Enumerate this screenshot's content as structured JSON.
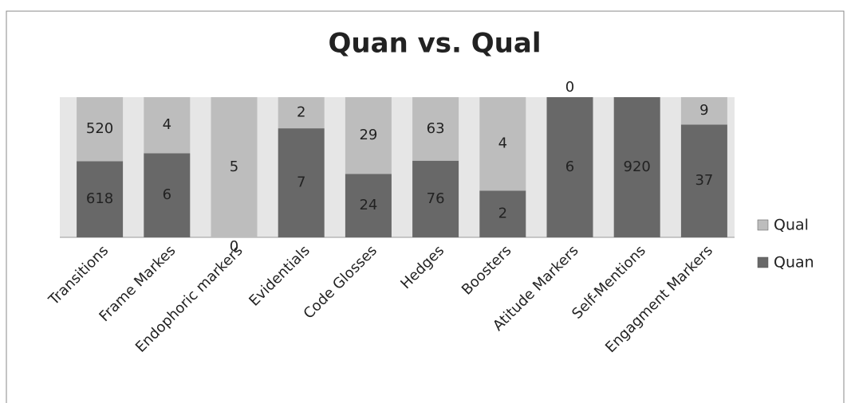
{
  "chart_data": {
    "type": "stacked_percent_bar",
    "title": "Quan vs. Qual",
    "categories": [
      "Transitions",
      "Frame Markes",
      "Endophoric markers",
      "Evidentials",
      "Code Glosses",
      "Hedges",
      "Boosters",
      "Atitude Markers",
      "Self-Mentions",
      "Engagment Markers"
    ],
    "series": [
      {
        "name": "Quan",
        "color": "#686868",
        "values": [
          618,
          6,
          0,
          7,
          24,
          76,
          2,
          6,
          920,
          37
        ]
      },
      {
        "name": "Qual",
        "color": "#bdbdbd",
        "values": [
          520,
          4,
          5,
          2,
          29,
          63,
          4,
          0,
          null,
          9
        ]
      }
    ],
    "legend": "right"
  }
}
